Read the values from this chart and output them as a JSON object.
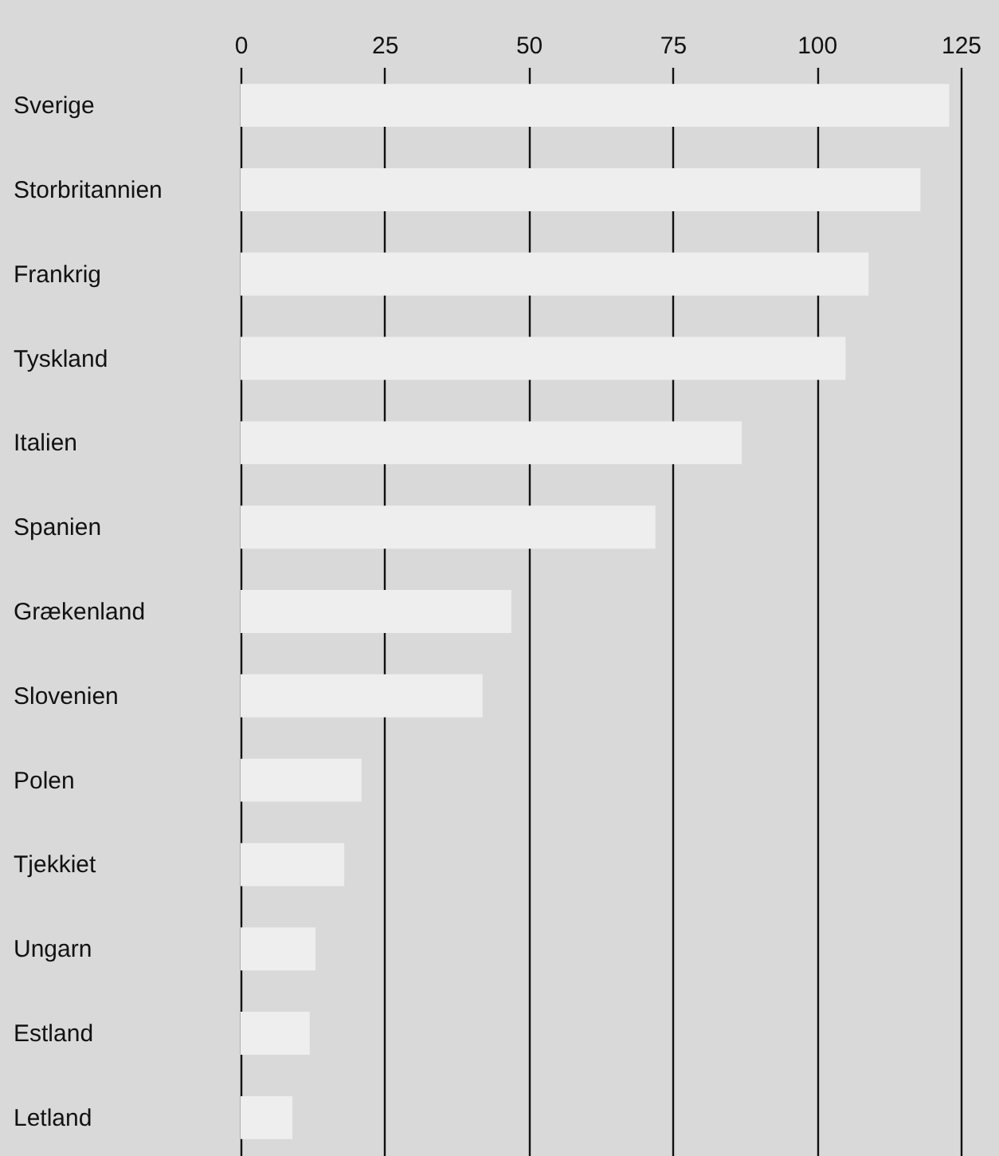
{
  "chart_data": {
    "type": "bar",
    "orientation": "horizontal",
    "categories": [
      "Sverige",
      "Storbritannien",
      "Frankrig",
      "Tyskland",
      "Italien",
      "Spanien",
      "Grækenland",
      "Slovenien",
      "Polen",
      "Tjekkiet",
      "Ungarn",
      "Estland",
      "Letland"
    ],
    "values": [
      123,
      118,
      109,
      105,
      87,
      72,
      47,
      42,
      21,
      18,
      13,
      12,
      9
    ],
    "color": "#eeeeee",
    "xlim": [
      0,
      125
    ],
    "xticks": [
      0,
      25,
      50,
      75,
      100,
      125
    ],
    "grid": "x"
  }
}
